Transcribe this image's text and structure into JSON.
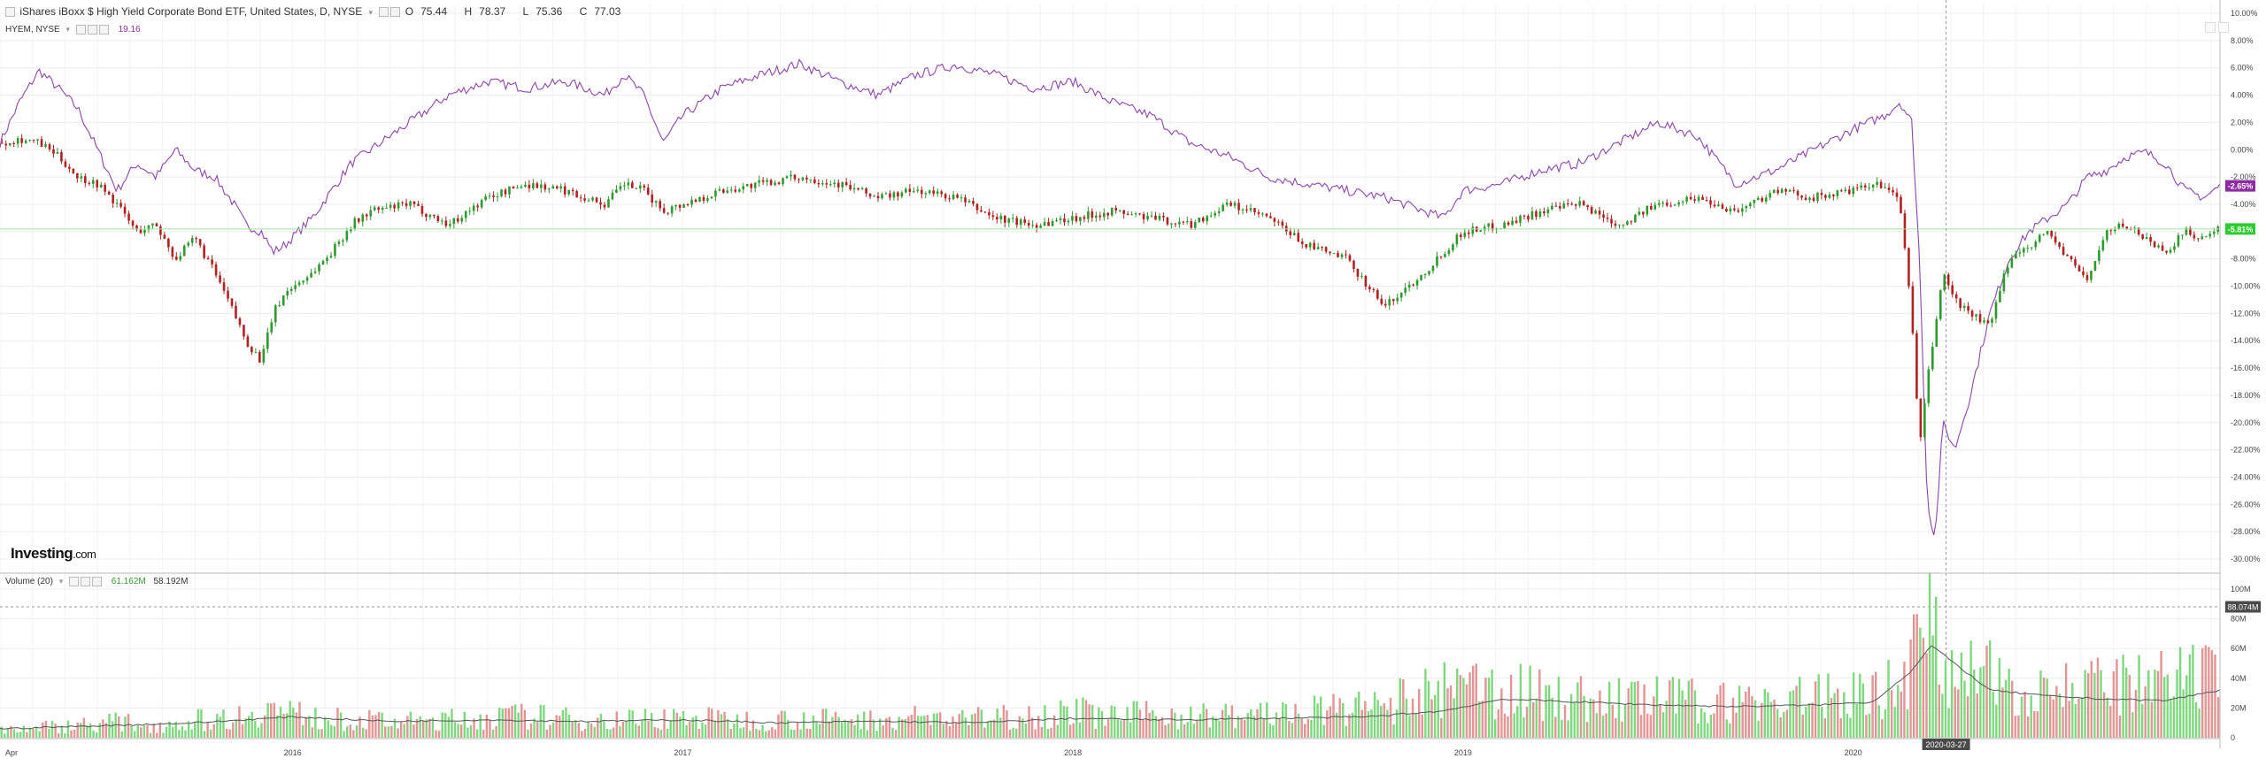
{
  "header": {
    "instrument_title": "iShares iBoxx $ High Yield Corporate Bond ETF, United States, D, NYSE",
    "ohlc": {
      "open_label": "O",
      "open": "75.44",
      "high_label": "H",
      "high": "78.37",
      "low_label": "L",
      "low": "75.36",
      "close_label": "C",
      "close": "77.03"
    },
    "compare_symbol": "HYEM, NYSE",
    "compare_value": "19.16",
    "volume_label": "Volume (20)",
    "volume_value": "61.162M",
    "volume_ma_value": "58.192M"
  },
  "logo": {
    "main": "Investing",
    "suffix": ".com"
  },
  "colors": {
    "candle_up": "#2e9a2e",
    "candle_down": "#b22020",
    "compare_line": "#8e44ad",
    "price_marker": "#2ecc2e",
    "compare_marker": "#8e2aa6",
    "volume_up": "#7fd87f",
    "volume_down": "#e39494",
    "volume_ma": "#555555",
    "grid": "#ececec"
  },
  "chart_data": [
    {
      "type": "line",
      "title": "iShares iBoxx $ High Yield Corporate Bond ETF, United States, D, NYSE",
      "y_unit": "% change",
      "ylim": [
        -30,
        10
      ],
      "y_ticks": [
        "10.00%",
        "8.00%",
        "6.00%",
        "4.00%",
        "2.00%",
        "0.00%",
        "-2.00%",
        "-4.00%",
        "-6.00%",
        "-8.00%",
        "-10.00%",
        "-12.00%",
        "-14.00%",
        "-16.00%",
        "-18.00%",
        "-20.00%",
        "-22.00%",
        "-24.00%",
        "-26.00%",
        "-28.00%",
        "-30.00%"
      ],
      "x_ticks": [
        "Apr",
        "2016",
        "2017",
        "2018",
        "2019",
        "2020"
      ],
      "x_range": [
        2015.25,
        2020.94
      ],
      "grid": true,
      "series": [
        {
          "name": "iShares iBoxx $ High Yield Corporate Bond ETF",
          "style": "candlestick",
          "x": [
            2015.25,
            2015.3,
            2015.35,
            2015.4,
            2015.45,
            2015.5,
            2015.55,
            2015.6,
            2015.65,
            2015.7,
            2015.75,
            2015.8,
            2015.85,
            2015.88,
            2015.92,
            2015.95,
            2015.98,
            2016.05,
            2016.1,
            2016.15,
            2016.2,
            2016.3,
            2016.4,
            2016.5,
            2016.6,
            2016.7,
            2016.8,
            2016.85,
            2016.9,
            2016.95,
            2017.0,
            2017.1,
            2017.2,
            2017.3,
            2017.4,
            2017.5,
            2017.6,
            2017.7,
            2017.8,
            2017.9,
            2018.0,
            2018.1,
            2018.2,
            2018.3,
            2018.4,
            2018.5,
            2018.6,
            2018.7,
            2018.8,
            2018.9,
            2018.95,
            2019.0,
            2019.1,
            2019.2,
            2019.3,
            2019.4,
            2019.5,
            2019.6,
            2019.7,
            2019.8,
            2019.9,
            2020.0,
            2020.08,
            2020.12,
            2020.15,
            2020.17,
            2020.19,
            2020.21,
            2020.23,
            2020.26,
            2020.3,
            2020.35,
            2020.4,
            2020.45,
            2020.5,
            2020.55,
            2020.6,
            2020.65,
            2020.7,
            2020.75,
            2020.8,
            2020.85,
            2020.9,
            2020.94
          ],
          "values": [
            0.5,
            0.8,
            0.5,
            -0.5,
            -2.0,
            -2.5,
            -4.0,
            -6.0,
            -5.5,
            -8.0,
            -6.5,
            -9.0,
            -12.0,
            -14.0,
            -15.5,
            -12.0,
            -10.5,
            -9.0,
            -7.5,
            -5.5,
            -4.5,
            -4.0,
            -5.5,
            -3.5,
            -2.5,
            -3.0,
            -4.0,
            -2.5,
            -3.0,
            -4.5,
            -4.0,
            -3.0,
            -2.5,
            -2.0,
            -2.5,
            -3.5,
            -3.0,
            -3.5,
            -5.0,
            -5.5,
            -5.0,
            -4.5,
            -5.0,
            -5.5,
            -4.0,
            -5.0,
            -7.0,
            -8.0,
            -11.5,
            -9.0,
            -7.5,
            -6.0,
            -5.5,
            -4.5,
            -4.0,
            -5.5,
            -4.0,
            -3.5,
            -4.5,
            -3.0,
            -3.5,
            -3.0,
            -2.5,
            -4.0,
            -12.0,
            -22.0,
            -17.0,
            -13.0,
            -9.0,
            -11.0,
            -12.0,
            -13.0,
            -8.0,
            -7.0,
            -6.0,
            -8.0,
            -9.5,
            -6.0,
            -5.5,
            -6.5,
            -7.5,
            -6.0,
            -6.5,
            -5.81
          ]
        },
        {
          "name": "HYEM, NYSE",
          "style": "line",
          "x": [
            2015.25,
            2015.3,
            2015.35,
            2015.4,
            2015.45,
            2015.5,
            2015.55,
            2015.6,
            2015.65,
            2015.7,
            2015.75,
            2015.8,
            2015.85,
            2015.88,
            2015.92,
            2015.95,
            2015.98,
            2016.05,
            2016.1,
            2016.15,
            2016.2,
            2016.3,
            2016.4,
            2016.5,
            2016.6,
            2016.7,
            2016.8,
            2016.85,
            2016.9,
            2016.95,
            2017.0,
            2017.1,
            2017.2,
            2017.3,
            2017.4,
            2017.5,
            2017.6,
            2017.7,
            2017.8,
            2017.9,
            2018.0,
            2018.1,
            2018.2,
            2018.3,
            2018.4,
            2018.5,
            2018.6,
            2018.7,
            2018.8,
            2018.9,
            2018.95,
            2019.0,
            2019.1,
            2019.2,
            2019.3,
            2019.4,
            2019.5,
            2019.6,
            2019.7,
            2019.8,
            2019.9,
            2020.0,
            2020.08,
            2020.12,
            2020.15,
            2020.17,
            2020.19,
            2020.21,
            2020.23,
            2020.26,
            2020.3,
            2020.35,
            2020.4,
            2020.45,
            2020.5,
            2020.55,
            2020.6,
            2020.65,
            2020.7,
            2020.75,
            2020.8,
            2020.85,
            2020.9,
            2020.94
          ],
          "values": [
            0.5,
            3.5,
            5.8,
            4.5,
            3.0,
            0.0,
            -3.0,
            -1.0,
            -2.0,
            0.0,
            -1.5,
            -2.0,
            -4.0,
            -5.5,
            -6.0,
            -7.5,
            -7.0,
            -5.0,
            -3.0,
            -1.0,
            0.0,
            2.0,
            4.0,
            5.0,
            4.5,
            5.0,
            4.0,
            5.5,
            4.0,
            0.5,
            2.5,
            4.5,
            5.5,
            6.3,
            5.0,
            4.0,
            5.5,
            6.2,
            5.5,
            4.5,
            5.0,
            3.5,
            2.5,
            0.5,
            -0.5,
            -2.0,
            -2.5,
            -3.0,
            -3.5,
            -4.5,
            -5.0,
            -3.0,
            -2.5,
            -1.5,
            -1.0,
            0.5,
            2.0,
            1.0,
            -2.5,
            -1.5,
            0.0,
            1.5,
            2.5,
            3.5,
            2.0,
            -8.0,
            -26.0,
            -28.5,
            -20.0,
            -22.0,
            -18.0,
            -12.0,
            -8.0,
            -6.0,
            -5.0,
            -4.0,
            -2.0,
            -1.5,
            -0.5,
            -0.2,
            -1.0,
            -3.0,
            -3.5,
            -2.65
          ]
        }
      ],
      "markers": [
        {
          "name": "ETF",
          "label": "-5.81%",
          "value": -5.81
        },
        {
          "name": "HYEM",
          "label": "-2.65%",
          "value": -2.65
        }
      ]
    },
    {
      "type": "bar",
      "title": "Volume (20)",
      "ylim": [
        0,
        100
      ],
      "y_unit": "M",
      "y_ticks": [
        "100M",
        "80M",
        "60M",
        "40M",
        "20M",
        "0"
      ],
      "x_range": [
        2015.25,
        2020.94
      ],
      "series": [
        {
          "name": "Volume",
          "x": [
            2015.25,
            2015.35,
            2015.45,
            2015.55,
            2015.65,
            2015.75,
            2015.85,
            2015.92,
            2015.98,
            2016.05,
            2016.15,
            2016.3,
            2016.45,
            2016.6,
            2016.75,
            2016.9,
            2017.0,
            2017.15,
            2017.3,
            2017.45,
            2017.6,
            2017.75,
            2017.9,
            2018.0,
            2018.1,
            2018.25,
            2018.4,
            2018.55,
            2018.7,
            2018.8,
            2018.9,
            2018.95,
            2019.05,
            2019.2,
            2019.35,
            2019.5,
            2019.65,
            2019.8,
            2019.95,
            2020.1,
            2020.15,
            2020.19,
            2020.23,
            2020.3,
            2020.4,
            2020.5,
            2020.6,
            2020.7,
            2020.8,
            2020.9
          ],
          "values": [
            6,
            7,
            9,
            11,
            8,
            12,
            14,
            20,
            18,
            14,
            12,
            11,
            13,
            15,
            12,
            13,
            14,
            12,
            13,
            12,
            14,
            13,
            16,
            18,
            15,
            16,
            15,
            17,
            19,
            22,
            30,
            32,
            34,
            30,
            25,
            27,
            24,
            26,
            28,
            35,
            55,
            75,
            60,
            42,
            40,
            36,
            34,
            35,
            37,
            40
          ]
        },
        {
          "name": "MA(20)",
          "x": [
            2015.25,
            2015.5,
            2015.75,
            2016.0,
            2016.25,
            2016.5,
            2016.75,
            2017.0,
            2017.25,
            2017.5,
            2017.75,
            2018.0,
            2018.25,
            2018.5,
            2018.75,
            2018.95,
            2019.1,
            2019.3,
            2019.5,
            2019.7,
            2019.9,
            2020.05,
            2020.15,
            2020.2,
            2020.25,
            2020.35,
            2020.5,
            2020.65,
            2020.8,
            2020.94
          ],
          "values": [
            6,
            8,
            10,
            14,
            11,
            12,
            11,
            12,
            10,
            11,
            10,
            13,
            12,
            13,
            14,
            18,
            26,
            24,
            22,
            21,
            22,
            24,
            45,
            62,
            52,
            32,
            28,
            26,
            25,
            32
          ]
        }
      ],
      "markers": [
        {
          "name": "current",
          "label": "88.074M",
          "value": 88.074
        }
      ]
    }
  ],
  "crosshair": {
    "label": "2020-03-27"
  }
}
